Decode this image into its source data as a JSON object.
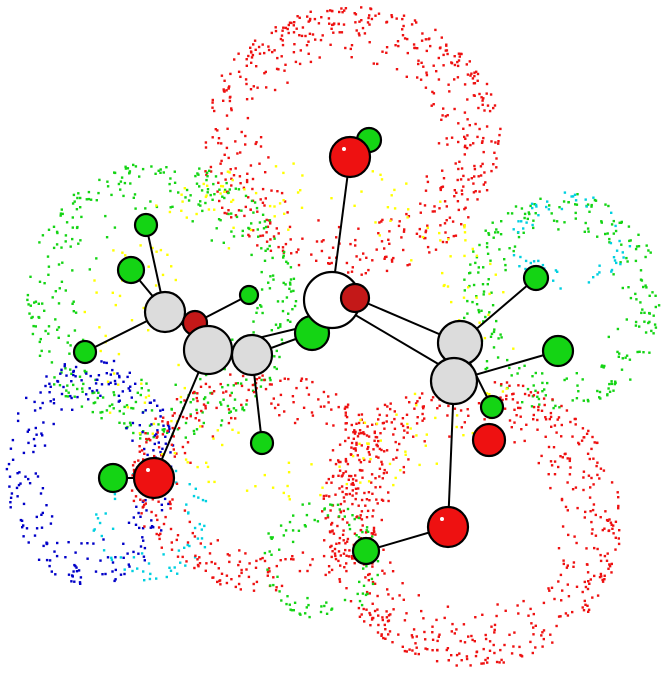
{
  "molecule": {
    "element_colors": {
      "C": "#dcdcdc",
      "H": "#14d414",
      "O": "#ee1111",
      "O2": "#c41818"
    },
    "surface_colors": [
      "#ee1111",
      "#14d414",
      "#ffff00",
      "#00d0e0",
      "#0000c8"
    ],
    "atoms": [
      {
        "id": "O1",
        "el": "O"
      },
      {
        "id": "H1",
        "el": "H"
      },
      {
        "id": "C1",
        "el": "C"
      },
      {
        "id": "O2",
        "el": "O2"
      },
      {
        "id": "H2",
        "el": "H"
      },
      {
        "id": "C2",
        "el": "C"
      },
      {
        "id": "H3",
        "el": "H"
      },
      {
        "id": "H4",
        "el": "H"
      },
      {
        "id": "H5",
        "el": "H"
      },
      {
        "id": "O3",
        "el": "O2"
      },
      {
        "id": "H6",
        "el": "H"
      },
      {
        "id": "C3",
        "el": "C"
      },
      {
        "id": "C4",
        "el": "C"
      },
      {
        "id": "H7",
        "el": "H"
      },
      {
        "id": "O4",
        "el": "O"
      },
      {
        "id": "H8",
        "el": "H"
      },
      {
        "id": "C5",
        "el": "C"
      },
      {
        "id": "C6",
        "el": "C"
      },
      {
        "id": "H9",
        "el": "H"
      },
      {
        "id": "H10",
        "el": "H"
      },
      {
        "id": "H11",
        "el": "H"
      },
      {
        "id": "O5",
        "el": "O"
      },
      {
        "id": "O6",
        "el": "O"
      },
      {
        "id": "H12",
        "el": "H"
      }
    ],
    "bonds": [
      [
        "O1",
        "C1"
      ],
      [
        "C1",
        "C2"
      ],
      [
        "C1",
        "O2"
      ],
      [
        "C1",
        "C5"
      ],
      [
        "C1",
        "H2"
      ],
      [
        "C2",
        "C3"
      ],
      [
        "C3",
        "C4"
      ],
      [
        "C2",
        "H3"
      ],
      [
        "C2",
        "H4"
      ],
      [
        "C2",
        "H5"
      ],
      [
        "C3",
        "O3"
      ],
      [
        "C3",
        "H6"
      ],
      [
        "C3",
        "O4"
      ],
      [
        "C4",
        "H7"
      ],
      [
        "C4",
        "H8"
      ],
      [
        "O4",
        "H8"
      ],
      [
        "C5",
        "C6"
      ],
      [
        "C5",
        "H9"
      ],
      [
        "C5",
        "H10"
      ],
      [
        "C6",
        "O6"
      ],
      [
        "O6",
        "H12"
      ],
      [
        "C6",
        "H11"
      ]
    ]
  }
}
